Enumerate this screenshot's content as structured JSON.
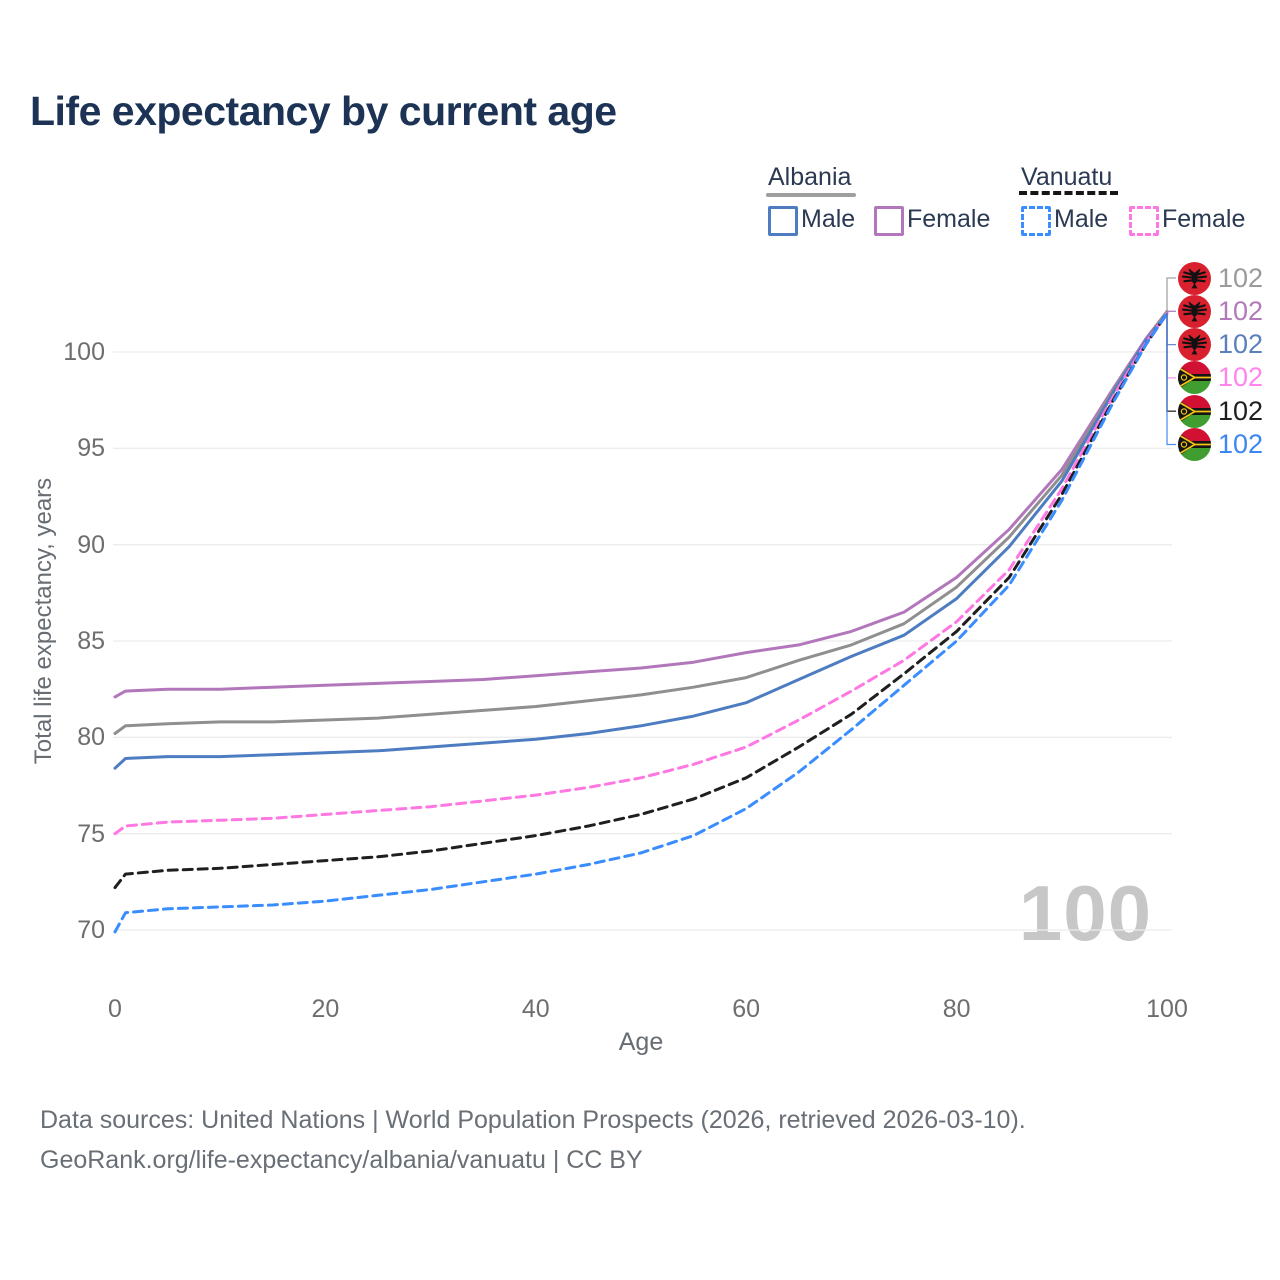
{
  "title": "Life expectancy by current age",
  "legend": {
    "albania": {
      "label": "Albania",
      "male_label": "Male",
      "female_label": "Female"
    },
    "vanuatu": {
      "label": "Vanuatu",
      "male_label": "Male",
      "female_label": "Female"
    }
  },
  "axes": {
    "y_title": "Total life expectancy, years",
    "x_title": "Age"
  },
  "watermark_age": "100",
  "end_labels": [
    {
      "flag": "albania",
      "series": "Albania",
      "value": "102",
      "color": "#9a9a9a"
    },
    {
      "flag": "albania",
      "series": "Albania Female",
      "value": "102",
      "color": "#b17ab8"
    },
    {
      "flag": "albania",
      "series": "Albania Male",
      "value": "102",
      "color": "#5b7fbe"
    },
    {
      "flag": "vanuatu",
      "series": "Vanuatu Female",
      "value": "102",
      "color": "#ff85ec"
    },
    {
      "flag": "vanuatu",
      "series": "Vanuatu",
      "value": "102",
      "color": "#1f1f1f"
    },
    {
      "flag": "vanuatu",
      "series": "Vanuatu Male",
      "value": "102",
      "color": "#3b86f0"
    }
  ],
  "footer": {
    "line1": "Data sources: United Nations | World Population Prospects (2026, retrieved 2026-03-10).",
    "line2": "GeoRank.org/life-expectancy/albania/vanuatu | CC BY"
  },
  "chart_data": {
    "type": "line",
    "title": "Life expectancy by current age",
    "xlabel": "Age",
    "ylabel": "Total life expectancy, years",
    "xlim": [
      0,
      100
    ],
    "ylim": [
      70,
      100
    ],
    "x_ticks": [
      0,
      20,
      40,
      60,
      80,
      100
    ],
    "y_ticks": [
      70,
      75,
      80,
      85,
      90,
      95,
      100
    ],
    "grid": "horizontal",
    "legend_position": "top-right",
    "ages": [
      0,
      1,
      5,
      10,
      15,
      20,
      25,
      30,
      35,
      40,
      45,
      50,
      55,
      60,
      65,
      70,
      75,
      80,
      85,
      90,
      95,
      98,
      100
    ],
    "series": [
      {
        "id": "albania-female",
        "name": "Albania Female",
        "color": "#b277bb",
        "dash": "solid",
        "values": [
          82.1,
          82.4,
          82.5,
          82.5,
          82.6,
          82.7,
          82.8,
          82.9,
          83.0,
          83.2,
          83.4,
          83.6,
          83.9,
          84.4,
          84.8,
          85.5,
          86.5,
          88.3,
          90.8,
          93.9,
          98.2,
          100.7,
          102.1
        ]
      },
      {
        "id": "albania-total",
        "name": "Albania",
        "color": "#8f8f8f",
        "dash": "solid",
        "values": [
          80.2,
          80.6,
          80.7,
          80.8,
          80.8,
          80.9,
          81.0,
          81.2,
          81.4,
          81.6,
          81.9,
          82.2,
          82.6,
          83.1,
          84.0,
          84.8,
          85.9,
          87.8,
          90.4,
          93.6,
          98.1,
          100.6,
          102.1
        ]
      },
      {
        "id": "albania-male",
        "name": "Albania Male",
        "color": "#4d7cc1",
        "dash": "solid",
        "values": [
          78.4,
          78.9,
          79.0,
          79.0,
          79.1,
          79.2,
          79.3,
          79.5,
          79.7,
          79.9,
          80.2,
          80.6,
          81.1,
          81.8,
          83.0,
          84.2,
          85.3,
          87.2,
          89.9,
          93.3,
          98.0,
          100.6,
          102.0
        ]
      },
      {
        "id": "vanuatu-female",
        "name": "Vanuatu Female",
        "color": "#ff77e3",
        "dash": "dashed",
        "values": [
          75.0,
          75.4,
          75.6,
          75.7,
          75.8,
          76.0,
          76.2,
          76.4,
          76.7,
          77.0,
          77.4,
          77.9,
          78.6,
          79.5,
          80.9,
          82.4,
          84.0,
          86.0,
          88.7,
          92.9,
          97.8,
          100.5,
          102.0
        ]
      },
      {
        "id": "vanuatu-total",
        "name": "Vanuatu",
        "color": "#1f1f1f",
        "dash": "dashed",
        "values": [
          72.2,
          72.9,
          73.1,
          73.2,
          73.4,
          73.6,
          73.8,
          74.1,
          74.5,
          74.9,
          75.4,
          76.0,
          76.8,
          77.9,
          79.5,
          81.2,
          83.3,
          85.5,
          88.3,
          92.6,
          97.6,
          100.4,
          102.0
        ]
      },
      {
        "id": "vanuatu-male",
        "name": "Vanuatu Male",
        "color": "#3a8dff",
        "dash": "dashed",
        "values": [
          69.9,
          70.9,
          71.1,
          71.2,
          71.3,
          71.5,
          71.8,
          72.1,
          72.5,
          72.9,
          73.4,
          74.0,
          74.9,
          76.3,
          78.2,
          80.4,
          82.7,
          85.0,
          87.9,
          92.3,
          97.5,
          100.4,
          102.0
        ]
      }
    ]
  }
}
